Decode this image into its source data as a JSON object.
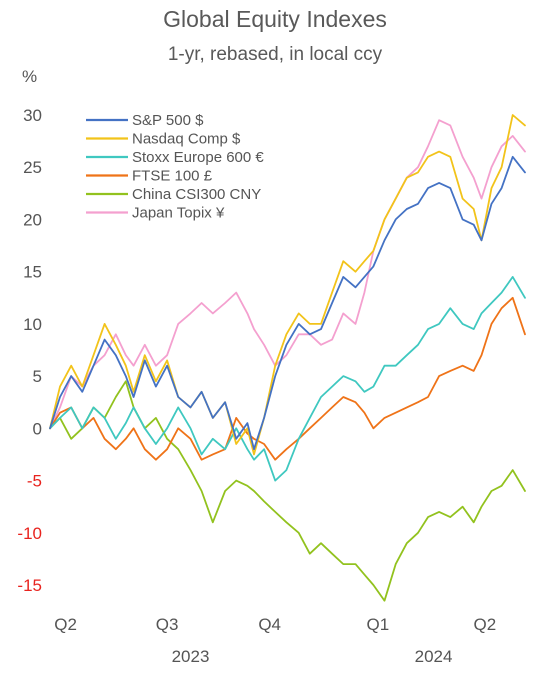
{
  "title": "Global Equity Indexes",
  "subtitle": "1-yr, rebased, in local ccy",
  "chart_data": {
    "type": "line",
    "title": "Global Equity Indexes",
    "subtitle": "1-yr, rebased, in local ccy",
    "ylabel": "%",
    "ylim": [
      -17,
      31
    ],
    "yticks": [
      30,
      25,
      20,
      15,
      10,
      5,
      0,
      -5,
      -10,
      -15
    ],
    "negative_tick_color": "#e8231e",
    "positive_tick_color": "#555555",
    "grid": false,
    "legend_position": "top-left",
    "x_range": [
      "2023-04-01",
      "2024-05-31"
    ],
    "quarter_ticks": [
      {
        "label": "Q2",
        "date": "2023-04-15"
      },
      {
        "label": "Q3",
        "date": "2023-07-15"
      },
      {
        "label": "Q4",
        "date": "2023-10-15"
      },
      {
        "label": "Q1",
        "date": "2024-01-20"
      },
      {
        "label": "Q2",
        "date": "2024-04-25"
      }
    ],
    "year_labels": [
      {
        "label": "2023",
        "date": "2023-08-05"
      },
      {
        "label": "2024",
        "date": "2024-03-10"
      }
    ],
    "series": [
      {
        "name": "S&P 500 $",
        "color": "#4472c4",
        "points": [
          [
            "2023-04-01",
            0
          ],
          [
            "2023-04-10",
            3
          ],
          [
            "2023-04-20",
            5
          ],
          [
            "2023-04-30",
            3.5
          ],
          [
            "2023-05-10",
            6
          ],
          [
            "2023-05-20",
            8.5
          ],
          [
            "2023-05-30",
            7
          ],
          [
            "2023-06-08",
            5
          ],
          [
            "2023-06-15",
            3
          ],
          [
            "2023-06-25",
            6.5
          ],
          [
            "2023-07-05",
            4
          ],
          [
            "2023-07-15",
            6
          ],
          [
            "2023-07-25",
            3
          ],
          [
            "2023-08-05",
            2
          ],
          [
            "2023-08-15",
            3.5
          ],
          [
            "2023-08-25",
            1
          ],
          [
            "2023-09-05",
            2.5
          ],
          [
            "2023-09-15",
            -1
          ],
          [
            "2023-09-25",
            0.5
          ],
          [
            "2023-10-01",
            -2
          ],
          [
            "2023-10-10",
            1
          ],
          [
            "2023-10-20",
            5
          ],
          [
            "2023-10-30",
            8
          ],
          [
            "2023-11-10",
            10
          ],
          [
            "2023-11-20",
            9
          ],
          [
            "2023-11-30",
            9.5
          ],
          [
            "2023-12-10",
            12
          ],
          [
            "2023-12-20",
            14.5
          ],
          [
            "2023-12-31",
            13.5
          ],
          [
            "2024-01-08",
            14.5
          ],
          [
            "2024-01-16",
            15.5
          ],
          [
            "2024-01-26",
            18
          ],
          [
            "2024-02-05",
            20
          ],
          [
            "2024-02-15",
            21
          ],
          [
            "2024-02-25",
            21.5
          ],
          [
            "2024-03-05",
            23
          ],
          [
            "2024-03-15",
            23.5
          ],
          [
            "2024-03-25",
            23
          ],
          [
            "2024-04-05",
            20
          ],
          [
            "2024-04-15",
            19.5
          ],
          [
            "2024-04-22",
            18
          ],
          [
            "2024-05-01",
            21.5
          ],
          [
            "2024-05-10",
            23
          ],
          [
            "2024-05-20",
            26
          ],
          [
            "2024-05-31",
            24.5
          ]
        ]
      },
      {
        "name": "Nasdaq Comp $",
        "color": "#f2c31a",
        "points": [
          [
            "2023-04-01",
            0
          ],
          [
            "2023-04-10",
            4
          ],
          [
            "2023-04-20",
            6
          ],
          [
            "2023-04-30",
            4
          ],
          [
            "2023-05-10",
            7
          ],
          [
            "2023-05-20",
            10
          ],
          [
            "2023-05-30",
            8
          ],
          [
            "2023-06-08",
            6
          ],
          [
            "2023-06-15",
            3.5
          ],
          [
            "2023-06-25",
            7
          ],
          [
            "2023-07-05",
            4.5
          ],
          [
            "2023-07-15",
            6.5
          ],
          [
            "2023-07-25",
            3
          ],
          [
            "2023-08-05",
            2
          ],
          [
            "2023-08-15",
            3.5
          ],
          [
            "2023-08-25",
            1
          ],
          [
            "2023-09-05",
            2.5
          ],
          [
            "2023-09-15",
            -1.5
          ],
          [
            "2023-09-25",
            0
          ],
          [
            "2023-10-01",
            -2.5
          ],
          [
            "2023-10-10",
            1
          ],
          [
            "2023-10-20",
            6
          ],
          [
            "2023-10-30",
            9
          ],
          [
            "2023-11-10",
            11
          ],
          [
            "2023-11-20",
            10
          ],
          [
            "2023-11-30",
            10
          ],
          [
            "2023-12-10",
            13
          ],
          [
            "2023-12-20",
            16
          ],
          [
            "2023-12-31",
            15
          ],
          [
            "2024-01-08",
            16
          ],
          [
            "2024-01-16",
            17
          ],
          [
            "2024-01-26",
            20
          ],
          [
            "2024-02-05",
            22
          ],
          [
            "2024-02-15",
            24
          ],
          [
            "2024-02-25",
            24.5
          ],
          [
            "2024-03-05",
            26
          ],
          [
            "2024-03-15",
            26.5
          ],
          [
            "2024-03-25",
            26
          ],
          [
            "2024-04-05",
            22
          ],
          [
            "2024-04-15",
            21
          ],
          [
            "2024-04-22",
            18
          ],
          [
            "2024-05-01",
            23
          ],
          [
            "2024-05-10",
            25
          ],
          [
            "2024-05-20",
            30
          ],
          [
            "2024-05-31",
            29
          ]
        ]
      },
      {
        "name": "Stoxx Europe 600  €",
        "color": "#3fc8c0",
        "points": [
          [
            "2023-04-01",
            0
          ],
          [
            "2023-04-10",
            1
          ],
          [
            "2023-04-20",
            2
          ],
          [
            "2023-04-30",
            0
          ],
          [
            "2023-05-10",
            2
          ],
          [
            "2023-05-20",
            1
          ],
          [
            "2023-05-30",
            -1
          ],
          [
            "2023-06-08",
            0.5
          ],
          [
            "2023-06-15",
            2
          ],
          [
            "2023-06-25",
            0
          ],
          [
            "2023-07-05",
            -1.5
          ],
          [
            "2023-07-15",
            0
          ],
          [
            "2023-07-25",
            2
          ],
          [
            "2023-08-05",
            0
          ],
          [
            "2023-08-15",
            -2.5
          ],
          [
            "2023-08-25",
            -1
          ],
          [
            "2023-09-05",
            -2
          ],
          [
            "2023-09-15",
            0
          ],
          [
            "2023-09-25",
            -2
          ],
          [
            "2023-10-01",
            -3
          ],
          [
            "2023-10-10",
            -2
          ],
          [
            "2023-10-20",
            -5
          ],
          [
            "2023-10-30",
            -4
          ],
          [
            "2023-11-10",
            -1
          ],
          [
            "2023-11-20",
            1
          ],
          [
            "2023-11-30",
            3
          ],
          [
            "2023-12-10",
            4
          ],
          [
            "2023-12-20",
            5
          ],
          [
            "2023-12-31",
            4.5
          ],
          [
            "2024-01-08",
            3.5
          ],
          [
            "2024-01-16",
            4
          ],
          [
            "2024-01-26",
            6
          ],
          [
            "2024-02-05",
            6
          ],
          [
            "2024-02-15",
            7
          ],
          [
            "2024-02-25",
            8
          ],
          [
            "2024-03-05",
            9.5
          ],
          [
            "2024-03-15",
            10
          ],
          [
            "2024-03-25",
            11.5
          ],
          [
            "2024-04-05",
            10
          ],
          [
            "2024-04-15",
            9.5
          ],
          [
            "2024-04-22",
            11
          ],
          [
            "2024-05-01",
            12
          ],
          [
            "2024-05-10",
            13
          ],
          [
            "2024-05-20",
            14.5
          ],
          [
            "2024-05-31",
            12.5
          ]
        ]
      },
      {
        "name": "FTSE 100  £",
        "color": "#ef7318",
        "points": [
          [
            "2023-04-01",
            0
          ],
          [
            "2023-04-10",
            1.5
          ],
          [
            "2023-04-20",
            2
          ],
          [
            "2023-04-30",
            0
          ],
          [
            "2023-05-10",
            1
          ],
          [
            "2023-05-20",
            -1
          ],
          [
            "2023-05-30",
            -2
          ],
          [
            "2023-06-08",
            -1
          ],
          [
            "2023-06-15",
            0
          ],
          [
            "2023-06-25",
            -2
          ],
          [
            "2023-07-05",
            -3
          ],
          [
            "2023-07-15",
            -2
          ],
          [
            "2023-07-25",
            0
          ],
          [
            "2023-08-05",
            -1
          ],
          [
            "2023-08-15",
            -3
          ],
          [
            "2023-08-25",
            -2.5
          ],
          [
            "2023-09-05",
            -2
          ],
          [
            "2023-09-15",
            1
          ],
          [
            "2023-09-25",
            -0.5
          ],
          [
            "2023-10-01",
            -1
          ],
          [
            "2023-10-10",
            -1.5
          ],
          [
            "2023-10-20",
            -3
          ],
          [
            "2023-10-30",
            -2
          ],
          [
            "2023-11-10",
            -1
          ],
          [
            "2023-11-20",
            0
          ],
          [
            "2023-11-30",
            1
          ],
          [
            "2023-12-10",
            2
          ],
          [
            "2023-12-20",
            3
          ],
          [
            "2023-12-31",
            2.5
          ],
          [
            "2024-01-08",
            1.5
          ],
          [
            "2024-01-16",
            0
          ],
          [
            "2024-01-26",
            1
          ],
          [
            "2024-02-05",
            1.5
          ],
          [
            "2024-02-15",
            2
          ],
          [
            "2024-02-25",
            2.5
          ],
          [
            "2024-03-05",
            3
          ],
          [
            "2024-03-15",
            5
          ],
          [
            "2024-03-25",
            5.5
          ],
          [
            "2024-04-05",
            6
          ],
          [
            "2024-04-15",
            5.5
          ],
          [
            "2024-04-22",
            7
          ],
          [
            "2024-05-01",
            10
          ],
          [
            "2024-05-10",
            11.5
          ],
          [
            "2024-05-20",
            12.5
          ],
          [
            "2024-05-31",
            9
          ]
        ]
      },
      {
        "name": "China CSI300  CNY",
        "color": "#92c21e",
        "points": [
          [
            "2023-04-01",
            0
          ],
          [
            "2023-04-10",
            1
          ],
          [
            "2023-04-20",
            -1
          ],
          [
            "2023-04-30",
            0
          ],
          [
            "2023-05-10",
            2
          ],
          [
            "2023-05-20",
            1
          ],
          [
            "2023-05-30",
            3
          ],
          [
            "2023-06-08",
            4.5
          ],
          [
            "2023-06-15",
            2
          ],
          [
            "2023-06-25",
            0
          ],
          [
            "2023-07-05",
            1
          ],
          [
            "2023-07-15",
            -1
          ],
          [
            "2023-07-25",
            -2
          ],
          [
            "2023-08-05",
            -4
          ],
          [
            "2023-08-15",
            -6
          ],
          [
            "2023-08-25",
            -9
          ],
          [
            "2023-09-05",
            -6
          ],
          [
            "2023-09-15",
            -5
          ],
          [
            "2023-09-25",
            -5.5
          ],
          [
            "2023-10-01",
            -6
          ],
          [
            "2023-10-10",
            -7
          ],
          [
            "2023-10-20",
            -8
          ],
          [
            "2023-10-30",
            -9
          ],
          [
            "2023-11-10",
            -10
          ],
          [
            "2023-11-20",
            -12
          ],
          [
            "2023-11-30",
            -11
          ],
          [
            "2023-12-10",
            -12
          ],
          [
            "2023-12-20",
            -13
          ],
          [
            "2023-12-31",
            -13
          ],
          [
            "2024-01-08",
            -14
          ],
          [
            "2024-01-16",
            -15
          ],
          [
            "2024-01-26",
            -16.5
          ],
          [
            "2024-02-05",
            -13
          ],
          [
            "2024-02-15",
            -11
          ],
          [
            "2024-02-25",
            -10
          ],
          [
            "2024-03-05",
            -8.5
          ],
          [
            "2024-03-15",
            -8
          ],
          [
            "2024-03-25",
            -8.5
          ],
          [
            "2024-04-05",
            -7.5
          ],
          [
            "2024-04-15",
            -9
          ],
          [
            "2024-04-22",
            -7.5
          ],
          [
            "2024-05-01",
            -6
          ],
          [
            "2024-05-10",
            -5.5
          ],
          [
            "2024-05-20",
            -4
          ],
          [
            "2024-05-31",
            -6
          ]
        ]
      },
      {
        "name": "Japan Topix  ¥",
        "color": "#f4a0cf",
        "points": [
          [
            "2023-04-01",
            0
          ],
          [
            "2023-04-10",
            2
          ],
          [
            "2023-04-20",
            5
          ],
          [
            "2023-04-30",
            4
          ],
          [
            "2023-05-10",
            6
          ],
          [
            "2023-05-20",
            7
          ],
          [
            "2023-05-30",
            9
          ],
          [
            "2023-06-08",
            7
          ],
          [
            "2023-06-15",
            6
          ],
          [
            "2023-06-25",
            8
          ],
          [
            "2023-07-05",
            6
          ],
          [
            "2023-07-15",
            7
          ],
          [
            "2023-07-25",
            10
          ],
          [
            "2023-08-05",
            11
          ],
          [
            "2023-08-15",
            12
          ],
          [
            "2023-08-25",
            11
          ],
          [
            "2023-09-05",
            12
          ],
          [
            "2023-09-15",
            13
          ],
          [
            "2023-09-25",
            11
          ],
          [
            "2023-10-01",
            9.5
          ],
          [
            "2023-10-10",
            8
          ],
          [
            "2023-10-20",
            6
          ],
          [
            "2023-10-30",
            7
          ],
          [
            "2023-11-10",
            9
          ],
          [
            "2023-11-20",
            9
          ],
          [
            "2023-11-30",
            8
          ],
          [
            "2023-12-10",
            8.5
          ],
          [
            "2023-12-20",
            11
          ],
          [
            "2023-12-31",
            10
          ],
          [
            "2024-01-08",
            13
          ],
          [
            "2024-01-16",
            17
          ],
          [
            "2024-01-26",
            20
          ],
          [
            "2024-02-05",
            22
          ],
          [
            "2024-02-15",
            24
          ],
          [
            "2024-02-25",
            25
          ],
          [
            "2024-03-05",
            27
          ],
          [
            "2024-03-15",
            29.5
          ],
          [
            "2024-03-25",
            29
          ],
          [
            "2024-04-05",
            26
          ],
          [
            "2024-04-15",
            24
          ],
          [
            "2024-04-22",
            22
          ],
          [
            "2024-05-01",
            25
          ],
          [
            "2024-05-10",
            27
          ],
          [
            "2024-05-20",
            28
          ],
          [
            "2024-05-31",
            26.5
          ]
        ]
      }
    ]
  }
}
